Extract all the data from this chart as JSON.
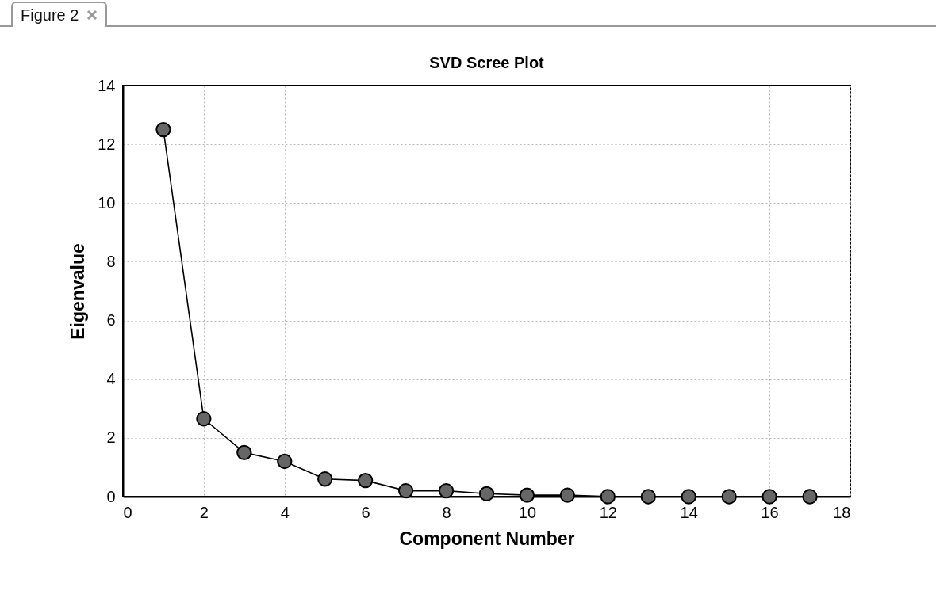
{
  "chart_data": {
    "type": "line",
    "title": "SVD Scree Plot",
    "xlabel": "Component Number",
    "ylabel": "Eigenvalue",
    "annotations": [
      "Figure 2"
    ],
    "x": [
      1,
      2,
      3,
      4,
      5,
      6,
      7,
      8,
      9,
      10,
      11,
      12,
      13,
      14,
      15,
      16,
      17
    ],
    "series": [
      {
        "color": "#666666",
        "values": [
          12.5,
          2.65,
          1.5,
          1.2,
          0.6,
          0.55,
          0.2,
          0.2,
          0.1,
          0.05,
          0.05,
          0,
          0,
          0,
          0,
          0,
          0
        ]
      }
    ],
    "xlim": [
      0,
      18
    ],
    "xticks": [
      0,
      2,
      4,
      6,
      8,
      10,
      12,
      14,
      16,
      18
    ],
    "ylim": [
      0,
      14
    ],
    "yticks": [
      0,
      2,
      4,
      6,
      8,
      10,
      12,
      14
    ],
    "grid": true,
    "marker": "circle",
    "line_style": "solid"
  }
}
